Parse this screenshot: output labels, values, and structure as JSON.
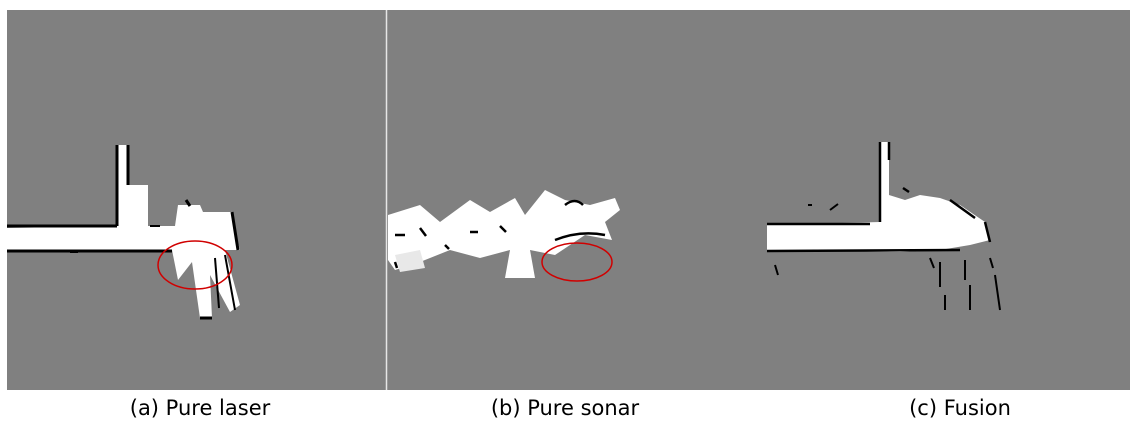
{
  "captions": [
    "(a) Pure laser",
    "(b) Pure sonar",
    "(c) Fusion"
  ]
}
